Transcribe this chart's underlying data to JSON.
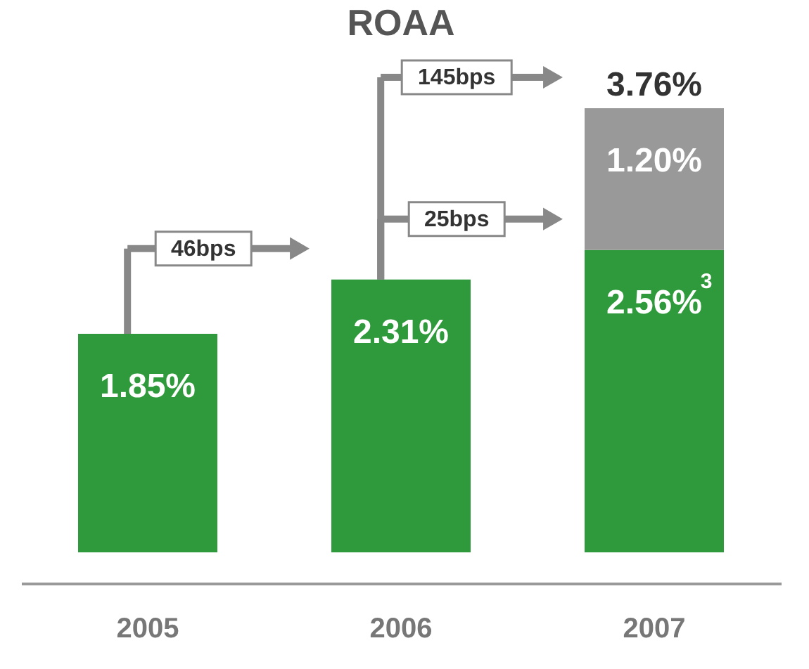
{
  "chart_data": {
    "type": "bar",
    "title": "ROAA",
    "categories": [
      "2005",
      "2006",
      "2007"
    ],
    "stacked": true,
    "legend": false,
    "series": [
      {
        "color": "#2f9a3c",
        "values": [
          1.85,
          2.31,
          2.56
        ],
        "value_labels": [
          "1.85%",
          "2.31%",
          "2.56%$^{3}$"
        ]
      },
      {
        "color": "#999999",
        "values": [
          null,
          null,
          1.2
        ],
        "value_labels": [
          null,
          null,
          "1.20%"
        ]
      }
    ],
    "totals": [
      null,
      null,
      "3.76%"
    ],
    "annotations": [
      "46bps",
      "25bps",
      "145bps"
    ]
  }
}
